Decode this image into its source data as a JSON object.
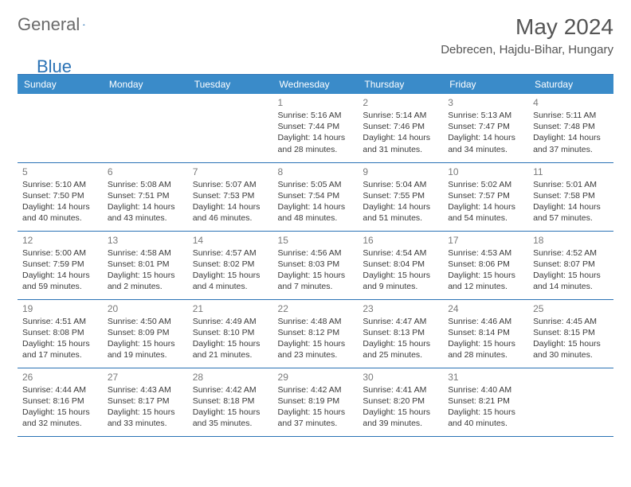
{
  "logo": {
    "part1": "General",
    "part2": "Blue"
  },
  "title": "May 2024",
  "location": "Debrecen, Hajdu-Bihar, Hungary",
  "colors": {
    "header_bg": "#3a8bc9",
    "header_text": "#ffffff",
    "rule": "#2a72b5",
    "daynum": "#7a7a7a",
    "body_text": "#3a3a3a",
    "logo_grey": "#6a6a6a",
    "logo_blue": "#2a72b5",
    "background": "#ffffff"
  },
  "typography": {
    "title_fontsize": 28,
    "location_fontsize": 15,
    "weekday_fontsize": 12,
    "daynum_fontsize": 12,
    "info_fontsize": 10.5
  },
  "weekdays": [
    "Sunday",
    "Monday",
    "Tuesday",
    "Wednesday",
    "Thursday",
    "Friday",
    "Saturday"
  ],
  "weeks": [
    [
      null,
      null,
      null,
      {
        "day": "1",
        "sunrise": "Sunrise: 5:16 AM",
        "sunset": "Sunset: 7:44 PM",
        "daylight": "Daylight: 14 hours and 28 minutes."
      },
      {
        "day": "2",
        "sunrise": "Sunrise: 5:14 AM",
        "sunset": "Sunset: 7:46 PM",
        "daylight": "Daylight: 14 hours and 31 minutes."
      },
      {
        "day": "3",
        "sunrise": "Sunrise: 5:13 AM",
        "sunset": "Sunset: 7:47 PM",
        "daylight": "Daylight: 14 hours and 34 minutes."
      },
      {
        "day": "4",
        "sunrise": "Sunrise: 5:11 AM",
        "sunset": "Sunset: 7:48 PM",
        "daylight": "Daylight: 14 hours and 37 minutes."
      }
    ],
    [
      {
        "day": "5",
        "sunrise": "Sunrise: 5:10 AM",
        "sunset": "Sunset: 7:50 PM",
        "daylight": "Daylight: 14 hours and 40 minutes."
      },
      {
        "day": "6",
        "sunrise": "Sunrise: 5:08 AM",
        "sunset": "Sunset: 7:51 PM",
        "daylight": "Daylight: 14 hours and 43 minutes."
      },
      {
        "day": "7",
        "sunrise": "Sunrise: 5:07 AM",
        "sunset": "Sunset: 7:53 PM",
        "daylight": "Daylight: 14 hours and 46 minutes."
      },
      {
        "day": "8",
        "sunrise": "Sunrise: 5:05 AM",
        "sunset": "Sunset: 7:54 PM",
        "daylight": "Daylight: 14 hours and 48 minutes."
      },
      {
        "day": "9",
        "sunrise": "Sunrise: 5:04 AM",
        "sunset": "Sunset: 7:55 PM",
        "daylight": "Daylight: 14 hours and 51 minutes."
      },
      {
        "day": "10",
        "sunrise": "Sunrise: 5:02 AM",
        "sunset": "Sunset: 7:57 PM",
        "daylight": "Daylight: 14 hours and 54 minutes."
      },
      {
        "day": "11",
        "sunrise": "Sunrise: 5:01 AM",
        "sunset": "Sunset: 7:58 PM",
        "daylight": "Daylight: 14 hours and 57 minutes."
      }
    ],
    [
      {
        "day": "12",
        "sunrise": "Sunrise: 5:00 AM",
        "sunset": "Sunset: 7:59 PM",
        "daylight": "Daylight: 14 hours and 59 minutes."
      },
      {
        "day": "13",
        "sunrise": "Sunrise: 4:58 AM",
        "sunset": "Sunset: 8:01 PM",
        "daylight": "Daylight: 15 hours and 2 minutes."
      },
      {
        "day": "14",
        "sunrise": "Sunrise: 4:57 AM",
        "sunset": "Sunset: 8:02 PM",
        "daylight": "Daylight: 15 hours and 4 minutes."
      },
      {
        "day": "15",
        "sunrise": "Sunrise: 4:56 AM",
        "sunset": "Sunset: 8:03 PM",
        "daylight": "Daylight: 15 hours and 7 minutes."
      },
      {
        "day": "16",
        "sunrise": "Sunrise: 4:54 AM",
        "sunset": "Sunset: 8:04 PM",
        "daylight": "Daylight: 15 hours and 9 minutes."
      },
      {
        "day": "17",
        "sunrise": "Sunrise: 4:53 AM",
        "sunset": "Sunset: 8:06 PM",
        "daylight": "Daylight: 15 hours and 12 minutes."
      },
      {
        "day": "18",
        "sunrise": "Sunrise: 4:52 AM",
        "sunset": "Sunset: 8:07 PM",
        "daylight": "Daylight: 15 hours and 14 minutes."
      }
    ],
    [
      {
        "day": "19",
        "sunrise": "Sunrise: 4:51 AM",
        "sunset": "Sunset: 8:08 PM",
        "daylight": "Daylight: 15 hours and 17 minutes."
      },
      {
        "day": "20",
        "sunrise": "Sunrise: 4:50 AM",
        "sunset": "Sunset: 8:09 PM",
        "daylight": "Daylight: 15 hours and 19 minutes."
      },
      {
        "day": "21",
        "sunrise": "Sunrise: 4:49 AM",
        "sunset": "Sunset: 8:10 PM",
        "daylight": "Daylight: 15 hours and 21 minutes."
      },
      {
        "day": "22",
        "sunrise": "Sunrise: 4:48 AM",
        "sunset": "Sunset: 8:12 PM",
        "daylight": "Daylight: 15 hours and 23 minutes."
      },
      {
        "day": "23",
        "sunrise": "Sunrise: 4:47 AM",
        "sunset": "Sunset: 8:13 PM",
        "daylight": "Daylight: 15 hours and 25 minutes."
      },
      {
        "day": "24",
        "sunrise": "Sunrise: 4:46 AM",
        "sunset": "Sunset: 8:14 PM",
        "daylight": "Daylight: 15 hours and 28 minutes."
      },
      {
        "day": "25",
        "sunrise": "Sunrise: 4:45 AM",
        "sunset": "Sunset: 8:15 PM",
        "daylight": "Daylight: 15 hours and 30 minutes."
      }
    ],
    [
      {
        "day": "26",
        "sunrise": "Sunrise: 4:44 AM",
        "sunset": "Sunset: 8:16 PM",
        "daylight": "Daylight: 15 hours and 32 minutes."
      },
      {
        "day": "27",
        "sunrise": "Sunrise: 4:43 AM",
        "sunset": "Sunset: 8:17 PM",
        "daylight": "Daylight: 15 hours and 33 minutes."
      },
      {
        "day": "28",
        "sunrise": "Sunrise: 4:42 AM",
        "sunset": "Sunset: 8:18 PM",
        "daylight": "Daylight: 15 hours and 35 minutes."
      },
      {
        "day": "29",
        "sunrise": "Sunrise: 4:42 AM",
        "sunset": "Sunset: 8:19 PM",
        "daylight": "Daylight: 15 hours and 37 minutes."
      },
      {
        "day": "30",
        "sunrise": "Sunrise: 4:41 AM",
        "sunset": "Sunset: 8:20 PM",
        "daylight": "Daylight: 15 hours and 39 minutes."
      },
      {
        "day": "31",
        "sunrise": "Sunrise: 4:40 AM",
        "sunset": "Sunset: 8:21 PM",
        "daylight": "Daylight: 15 hours and 40 minutes."
      },
      null
    ]
  ]
}
